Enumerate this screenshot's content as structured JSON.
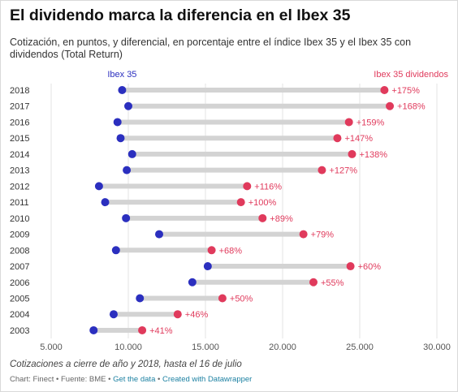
{
  "header": {
    "title": "El dividendo marca la diferencia en el Ibex 35",
    "subtitle": "Cotización, en puntos, y diferencial, en porcentaje entre el índice Ibex 35 y el Ibex 35 con dividendos (Total Return)"
  },
  "footer": {
    "notes": "Cotizaciones a cierre de año y 2018, hasta el 16 de julio",
    "chart_by": "Chart: Finect",
    "source": "Fuente: BME",
    "get_data": "Get the data",
    "created_with": "Created with Datawrapper",
    "separator": "•"
  },
  "colors": {
    "ibex": "#2b2fbf",
    "dividendos": "#e03a5c",
    "connector": "#d3d3d3"
  },
  "chart_data": {
    "type": "dot-range",
    "title": "El dividendo marca la diferencia en el Ibex 35",
    "series": [
      {
        "name": "Ibex 35",
        "label": "Ibex 35"
      },
      {
        "name": "Ibex 35 dividendos",
        "label": "Ibex 35 dividendos"
      }
    ],
    "categories": [
      "2018",
      "2017",
      "2016",
      "2015",
      "2014",
      "2013",
      "2012",
      "2011",
      "2010",
      "2009",
      "2008",
      "2007",
      "2006",
      "2005",
      "2004",
      "2003"
    ],
    "ibex": [
      9600,
      10000,
      9300,
      9500,
      10250,
      9900,
      8100,
      8500,
      9850,
      12000,
      9200,
      15150,
      14150,
      10750,
      9050,
      7750
    ],
    "dividendos": [
      26600,
      26950,
      24300,
      23550,
      24500,
      22550,
      17700,
      17300,
      18700,
      21350,
      15400,
      24400,
      22000,
      16100,
      13200,
      10900
    ],
    "differential": [
      "+175%",
      "+168%",
      "+159%",
      "+147%",
      "+138%",
      "+127%",
      "+116%",
      "+100%",
      "+89%",
      "+79%",
      "+68%",
      "+60%",
      "+55%",
      "+50%",
      "+46%",
      "+41%"
    ],
    "xlim": [
      5000,
      30000
    ],
    "xticks": [
      5000,
      10000,
      15000,
      20000,
      25000,
      30000
    ],
    "xtick_labels": [
      "5.000",
      "10.000",
      "15.000",
      "20.000",
      "25.000",
      "30.000"
    ],
    "grid": true
  }
}
